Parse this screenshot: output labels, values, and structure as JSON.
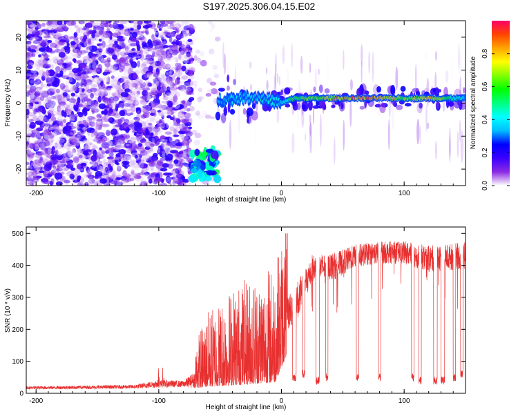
{
  "title": "S197.2025.306.04.15.E02",
  "chart_data": [
    {
      "type": "heatmap",
      "name": "spectrogram",
      "xlabel": "Height of straight line (km)",
      "ylabel": "Frequency (Hz)",
      "xlim": [
        -208,
        150
      ],
      "ylim": [
        -25,
        25
      ],
      "xticks": [
        -200,
        -100,
        0,
        100
      ],
      "yticks": [
        -20,
        -10,
        0,
        10,
        20
      ],
      "colorbar": {
        "label": "Normalized spectral amplitude",
        "range": [
          0,
          1
        ],
        "ticks": [
          0.0,
          0.2,
          0.4,
          0.6,
          0.8
        ],
        "colors": [
          "#ffffff",
          "#8a2be2",
          "#3a00ff",
          "#0000ff",
          "#00bfff",
          "#00ffff",
          "#00ff80",
          "#00ff00",
          "#80ff00",
          "#ffff00",
          "#ffa500",
          "#ff4500",
          "#ff0066"
        ]
      },
      "regions": [
        {
          "x0": -208,
          "x1": -73,
          "f0": -25,
          "f1": 25,
          "kind": "noise",
          "level": 0.2
        },
        {
          "x0": -73,
          "x1": -52,
          "f0": -25,
          "f1": 25,
          "kind": "sparse-noise",
          "level": 0.1
        },
        {
          "x0": -73,
          "x1": -52,
          "f0": -23,
          "f1": -14,
          "kind": "blob",
          "level": 0.4
        },
        {
          "x0": -52,
          "x1": 150,
          "f0": -25,
          "f1": 25,
          "kind": "tone",
          "level": 0.2
        }
      ],
      "tone_track": [
        {
          "x": -52,
          "freq": 1,
          "amp": 0.35
        },
        {
          "x": -20,
          "freq": 2,
          "amp": 0.45
        },
        {
          "x": 0,
          "freq": 0,
          "amp": 0.4
        },
        {
          "x": 10,
          "freq": 1.5,
          "amp": 0.6
        },
        {
          "x": 30,
          "freq": 1.5,
          "amp": 0.7
        },
        {
          "x": 55,
          "freq": 1.5,
          "amp": 0.9
        },
        {
          "x": 80,
          "freq": 1.5,
          "amp": 0.9
        },
        {
          "x": 100,
          "freq": 1.5,
          "amp": 0.7
        },
        {
          "x": 120,
          "freq": 1.5,
          "amp": 0.8
        },
        {
          "x": 150,
          "freq": 1.5,
          "amp": 0.4
        }
      ]
    },
    {
      "type": "line",
      "name": "snr",
      "xlabel": "Height of straight line (km)",
      "ylabel": "SNR (10 * v/v)",
      "xlim": [
        -208,
        150
      ],
      "ylim": [
        0,
        520
      ],
      "xticks": [
        -200,
        -100,
        0,
        100
      ],
      "yticks": [
        0,
        100,
        200,
        300,
        400,
        500
      ],
      "color": "#e83030",
      "profile": [
        {
          "x": -208,
          "base": 15,
          "spread": 10
        },
        {
          "x": -120,
          "base": 18,
          "spread": 12
        },
        {
          "x": -100,
          "base": 25,
          "spread": 25
        },
        {
          "x": -80,
          "base": 25,
          "spread": 20
        },
        {
          "x": -60,
          "base": 40,
          "spread": 90
        },
        {
          "x": -40,
          "base": 50,
          "spread": 120
        },
        {
          "x": -20,
          "base": 60,
          "spread": 130
        },
        {
          "x": -5,
          "base": 70,
          "spread": 140
        },
        {
          "x": 5,
          "base": 250,
          "spread": 80
        },
        {
          "x": 15,
          "base": 300,
          "spread": 90
        },
        {
          "x": 25,
          "base": 390,
          "spread": 60
        },
        {
          "x": 45,
          "base": 400,
          "spread": 60
        },
        {
          "x": 60,
          "base": 430,
          "spread": 50
        },
        {
          "x": 80,
          "base": 440,
          "spread": 50
        },
        {
          "x": 100,
          "base": 440,
          "spread": 50
        },
        {
          "x": 120,
          "base": 420,
          "spread": 60
        },
        {
          "x": 150,
          "base": 430,
          "spread": 60
        }
      ],
      "dropouts": [
        {
          "x0": 9,
          "x1": 12,
          "level": 50
        },
        {
          "x0": 17,
          "x1": 19,
          "level": 60
        },
        {
          "x0": 28,
          "x1": 31,
          "level": 40
        },
        {
          "x0": 36,
          "x1": 38,
          "level": 50
        },
        {
          "x0": 61,
          "x1": 63,
          "level": 50
        },
        {
          "x0": 79,
          "x1": 81,
          "level": 50
        },
        {
          "x0": 106,
          "x1": 108,
          "level": 50
        },
        {
          "x0": 112,
          "x1": 114,
          "level": 40
        },
        {
          "x0": 124,
          "x1": 127,
          "level": 40
        },
        {
          "x0": 130,
          "x1": 133,
          "level": 40
        },
        {
          "x0": 140,
          "x1": 142,
          "level": 50
        },
        {
          "x0": 146,
          "x1": 148,
          "level": 60
        }
      ]
    }
  ]
}
